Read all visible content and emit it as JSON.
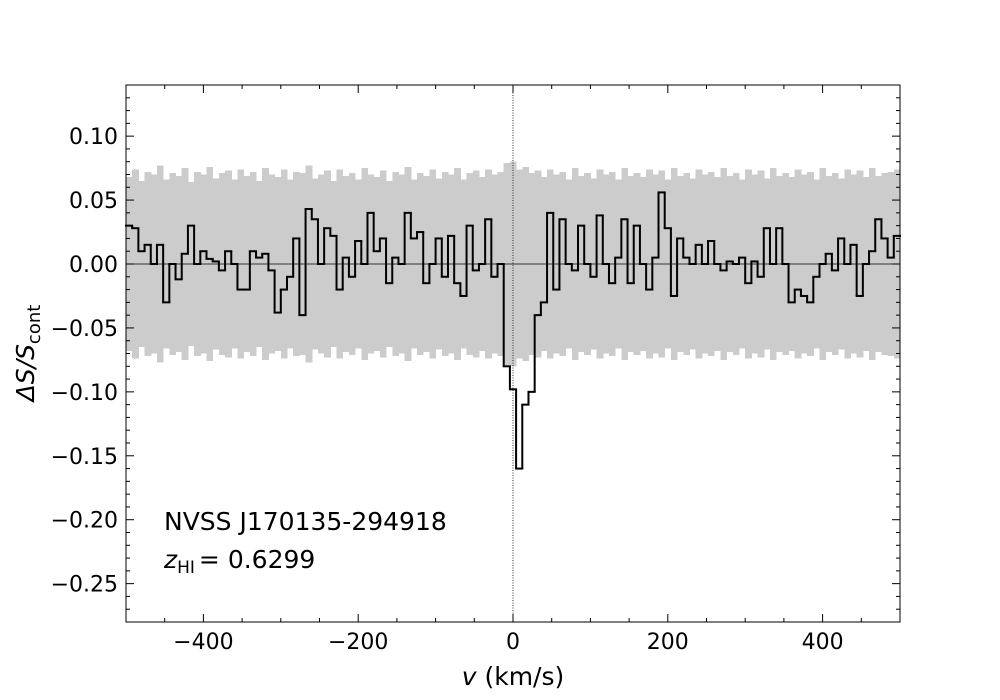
{
  "chart_data": {
    "type": "step",
    "annotation": "NVSS J170135-294918",
    "redshift_symbol": "z",
    "redshift_sub": "HI",
    "redshift_value": "= 0.6299",
    "xlabel_var": "v",
    "xlabel_unit": "(km/s)",
    "ylabel": "ΔS/S",
    "ylabel_sub": "cont",
    "xlim": [
      -500,
      500
    ],
    "ylim": [
      -0.28,
      0.14
    ],
    "xticks": [
      {
        "value": -400,
        "label": "−400"
      },
      {
        "value": -200,
        "label": "−200"
      },
      0,
      200,
      400
    ],
    "yticks": [
      {
        "value": -0.25,
        "label": "−0.25"
      },
      {
        "value": -0.2,
        "label": "−0.20"
      },
      {
        "value": -0.15,
        "label": "−0.15"
      },
      {
        "value": -0.1,
        "label": "−0.10"
      },
      {
        "value": -0.05,
        "label": "−0.05"
      },
      {
        "value": 0,
        "label": "0.00"
      },
      {
        "value": 0.05,
        "label": "0.05"
      },
      {
        "value": 0.1,
        "label": "0.10"
      }
    ],
    "xminorticks": [
      -450,
      -350,
      -300,
      -250,
      -150,
      -100,
      -50,
      50,
      100,
      150,
      250,
      300,
      350,
      450
    ],
    "yminorticks": [
      -0.27,
      -0.26,
      -0.24,
      -0.23,
      -0.22,
      -0.21,
      -0.19,
      -0.18,
      -0.17,
      -0.16,
      -0.14,
      -0.13,
      -0.12,
      -0.11,
      -0.09,
      -0.08,
      -0.07,
      -0.06,
      -0.04,
      -0.03,
      -0.02,
      -0.01,
      0.01,
      0.02,
      0.03,
      0.04,
      0.06,
      0.07,
      0.08,
      0.09,
      0.11,
      0.12,
      0.13
    ],
    "vline": 0,
    "hline": 0,
    "line_color": "#000000",
    "band_color": "#cccccc",
    "x": [
      -496,
      -488,
      -480,
      -472,
      -464,
      -456,
      -448,
      -440,
      -432,
      -424,
      -416,
      -408,
      -400,
      -392,
      -384,
      -376,
      -368,
      -360,
      -352,
      -344,
      -336,
      -328,
      -320,
      -312,
      -304,
      -296,
      -288,
      -280,
      -272,
      -264,
      -256,
      -248,
      -240,
      -232,
      -224,
      -216,
      -208,
      -200,
      -192,
      -184,
      -176,
      -168,
      -160,
      -152,
      -144,
      -136,
      -128,
      -120,
      -112,
      -104,
      -96,
      -88,
      -80,
      -72,
      -64,
      -56,
      -48,
      -40,
      -32,
      -24,
      -16,
      -8,
      0,
      8,
      16,
      24,
      32,
      40,
      48,
      56,
      64,
      72,
      80,
      88,
      96,
      104,
      112,
      120,
      128,
      136,
      144,
      152,
      160,
      168,
      176,
      184,
      192,
      200,
      208,
      216,
      224,
      232,
      240,
      248,
      256,
      264,
      272,
      280,
      288,
      296,
      304,
      312,
      320,
      328,
      336,
      344,
      352,
      360,
      368,
      376,
      384,
      392,
      400,
      408,
      416,
      424,
      432,
      440,
      448,
      456,
      464,
      472,
      480,
      488,
      496
    ],
    "values": [
      0.03,
      0.028,
      0.01,
      0.015,
      0.0,
      0.015,
      -0.03,
      0.0,
      -0.012,
      0.008,
      0.03,
      0.0,
      0.01,
      0.004,
      0.002,
      -0.005,
      0.01,
      0.0,
      -0.02,
      -0.02,
      0.01,
      0.005,
      0.008,
      -0.005,
      -0.038,
      -0.02,
      -0.01,
      0.02,
      -0.04,
      0.043,
      0.035,
      0.0,
      0.028,
      0.022,
      -0.02,
      0.005,
      -0.01,
      0.018,
      0.0,
      0.04,
      0.01,
      0.02,
      -0.015,
      0.005,
      0.0,
      0.04,
      0.02,
      0.025,
      -0.015,
      0.0,
      0.02,
      -0.01,
      0.022,
      -0.015,
      -0.025,
      0.03,
      -0.005,
      0.0,
      0.035,
      -0.01,
      0.0,
      -0.08,
      -0.098,
      -0.16,
      -0.11,
      -0.1,
      -0.04,
      -0.03,
      0.04,
      -0.02,
      0.035,
      0.0,
      -0.005,
      0.03,
      0.0,
      -0.01,
      0.038,
      0.0,
      -0.015,
      0.005,
      0.035,
      -0.015,
      0.03,
      0.0,
      -0.02,
      0.005,
      0.056,
      0.028,
      -0.025,
      0.02,
      0.005,
      0.0,
      0.015,
      0.0,
      0.018,
      0.0,
      -0.005,
      0.002,
      0.0,
      0.005,
      -0.015,
      0.002,
      -0.01,
      0.028,
      0.0,
      0.028,
      0.0,
      -0.03,
      -0.02,
      -0.025,
      -0.03,
      -0.01,
      0.0,
      0.008,
      -0.005,
      0.02,
      0.0,
      0.015,
      -0.025,
      0.0,
      0.01,
      0.035,
      0.02,
      0.005,
      0.022
    ],
    "noise": [
      0.068,
      0.074,
      0.065,
      0.072,
      0.07,
      0.077,
      0.066,
      0.071,
      0.069,
      0.075,
      0.064,
      0.072,
      0.07,
      0.076,
      0.067,
      0.071,
      0.073,
      0.066,
      0.074,
      0.069,
      0.072,
      0.065,
      0.075,
      0.07,
      0.068,
      0.074,
      0.066,
      0.072,
      0.071,
      0.077,
      0.067,
      0.07,
      0.073,
      0.065,
      0.074,
      0.069,
      0.071,
      0.066,
      0.075,
      0.07,
      0.068,
      0.073,
      0.065,
      0.072,
      0.07,
      0.076,
      0.066,
      0.071,
      0.069,
      0.074,
      0.067,
      0.072,
      0.07,
      0.075,
      0.066,
      0.071,
      0.073,
      0.068,
      0.074,
      0.07,
      0.072,
      0.079,
      0.08,
      0.074,
      0.076,
      0.071,
      0.073,
      0.068,
      0.074,
      0.07,
      0.072,
      0.066,
      0.075,
      0.069,
      0.071,
      0.067,
      0.074,
      0.07,
      0.072,
      0.066,
      0.075,
      0.069,
      0.071,
      0.068,
      0.074,
      0.07,
      0.073,
      0.066,
      0.075,
      0.069,
      0.071,
      0.067,
      0.074,
      0.07,
      0.072,
      0.068,
      0.075,
      0.069,
      0.071,
      0.066,
      0.074,
      0.07,
      0.073,
      0.067,
      0.075,
      0.069,
      0.071,
      0.068,
      0.074,
      0.07,
      0.072,
      0.066,
      0.075,
      0.069,
      0.071,
      0.067,
      0.074,
      0.07,
      0.073,
      0.068,
      0.075,
      0.069,
      0.071,
      0.072,
      0.074
    ]
  }
}
